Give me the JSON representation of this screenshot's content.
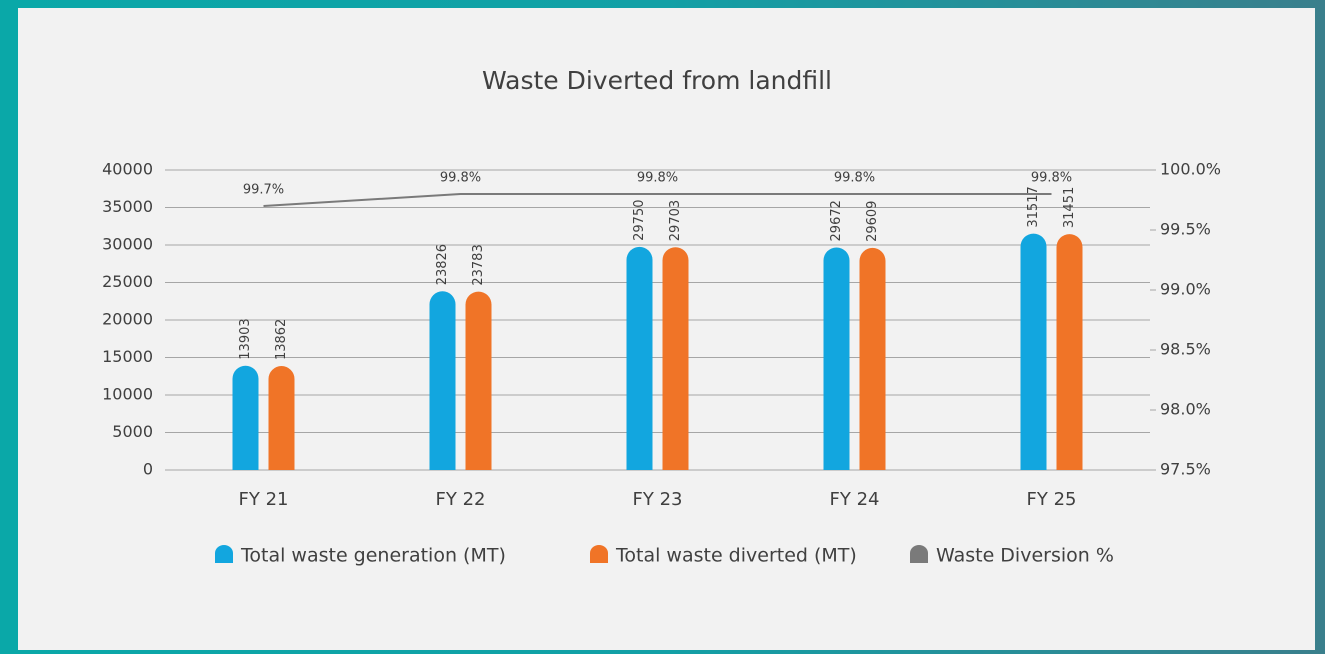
{
  "chart_data": {
    "type": "bar",
    "title": "Waste Diverted from landfill",
    "categories": [
      "FY 21",
      "FY 22",
      "FY 23",
      "FY 24",
      "FY 25"
    ],
    "series": [
      {
        "name": "Total waste generation (MT)",
        "color": "#12a6df",
        "values": [
          13903,
          23826,
          29750,
          29672,
          31517
        ]
      },
      {
        "name": "Total waste diverted (MT)",
        "color": "#f07427",
        "values": [
          13862,
          23783,
          29703,
          29609,
          31451
        ]
      },
      {
        "name": "Waste Diversion %",
        "color": "#7a7a7a",
        "type": "line",
        "axis": "y2",
        "values": [
          99.7,
          99.8,
          99.8,
          99.8,
          99.8
        ],
        "value_labels": [
          "99.7%",
          "99.8%",
          "99.8%",
          "99.8%",
          "99.8%"
        ]
      }
    ],
    "ylim": [
      0,
      40000
    ],
    "yticks": [
      0,
      5000,
      10000,
      15000,
      20000,
      25000,
      30000,
      35000,
      40000
    ],
    "y2lim": [
      97.5,
      100
    ],
    "y2ticks": [
      {
        "value": 97.5,
        "label": "97.5%"
      },
      {
        "value": 98,
        "label": "98.0%"
      },
      {
        "value": 98.5,
        "label": "98.5%"
      },
      {
        "value": 99,
        "label": "99.0%"
      },
      {
        "value": 99.5,
        "label": "99.5%"
      },
      {
        "value": 100,
        "label": "100.0%"
      }
    ],
    "grid": true,
    "legend": "bottom"
  }
}
